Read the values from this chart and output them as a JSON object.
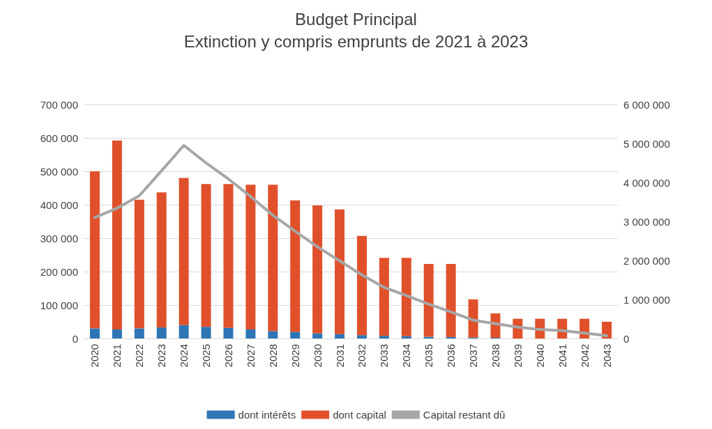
{
  "chart_data": {
    "type": "bar",
    "title": "Budget Principal",
    "subtitle": "Extinction y compris emprunts de 2021 à 2023",
    "categories": [
      "2020",
      "2021",
      "2022",
      "2023",
      "2024",
      "2025",
      "2026",
      "2027",
      "2028",
      "2029",
      "2030",
      "2031",
      "2032",
      "2033",
      "2034",
      "2035",
      "2036",
      "2037",
      "2038",
      "2039",
      "2040",
      "2041",
      "2042",
      "2043"
    ],
    "stacked": true,
    "series": [
      {
        "name": "dont intérêts",
        "color": "#2e75b6",
        "values": [
          30000,
          27000,
          30000,
          33000,
          40000,
          35000,
          32000,
          27000,
          22000,
          20000,
          15000,
          13000,
          10000,
          8000,
          7000,
          5000,
          4000,
          3000,
          2000,
          null,
          null,
          null,
          null,
          0
        ]
      },
      {
        "name": "dont capital",
        "color": "#e0502a",
        "values": [
          470000,
          565000,
          385000,
          404000,
          440000,
          427000,
          430000,
          433000,
          438000,
          393000,
          383000,
          373000,
          297000,
          233000,
          234000,
          218000,
          219000,
          114000,
          73000,
          59000,
          59000,
          59000,
          59000,
          50000
        ]
      },
      {
        "name": "Capital restant dû",
        "type": "line",
        "axis": "y2",
        "color": "#a6a6a6",
        "values": [
          3100000,
          3340000,
          3660000,
          4300000,
          4950000,
          4500000,
          4090000,
          3640000,
          3160000,
          2750000,
          2350000,
          1990000,
          1630000,
          1310000,
          1100000,
          880000,
          680000,
          470000,
          380000,
          290000,
          230000,
          200000,
          140000,
          70000
        ]
      }
    ],
    "ylim": [
      0,
      700000
    ],
    "yticks": [
      0,
      100000,
      200000,
      300000,
      400000,
      500000,
      600000,
      700000
    ],
    "y2lim": [
      0,
      6000000
    ],
    "y2ticks": [
      0,
      1000000,
      2000000,
      3000000,
      4000000,
      5000000,
      6000000
    ],
    "grid": "y",
    "legend": "bottom",
    "marker": "none"
  }
}
